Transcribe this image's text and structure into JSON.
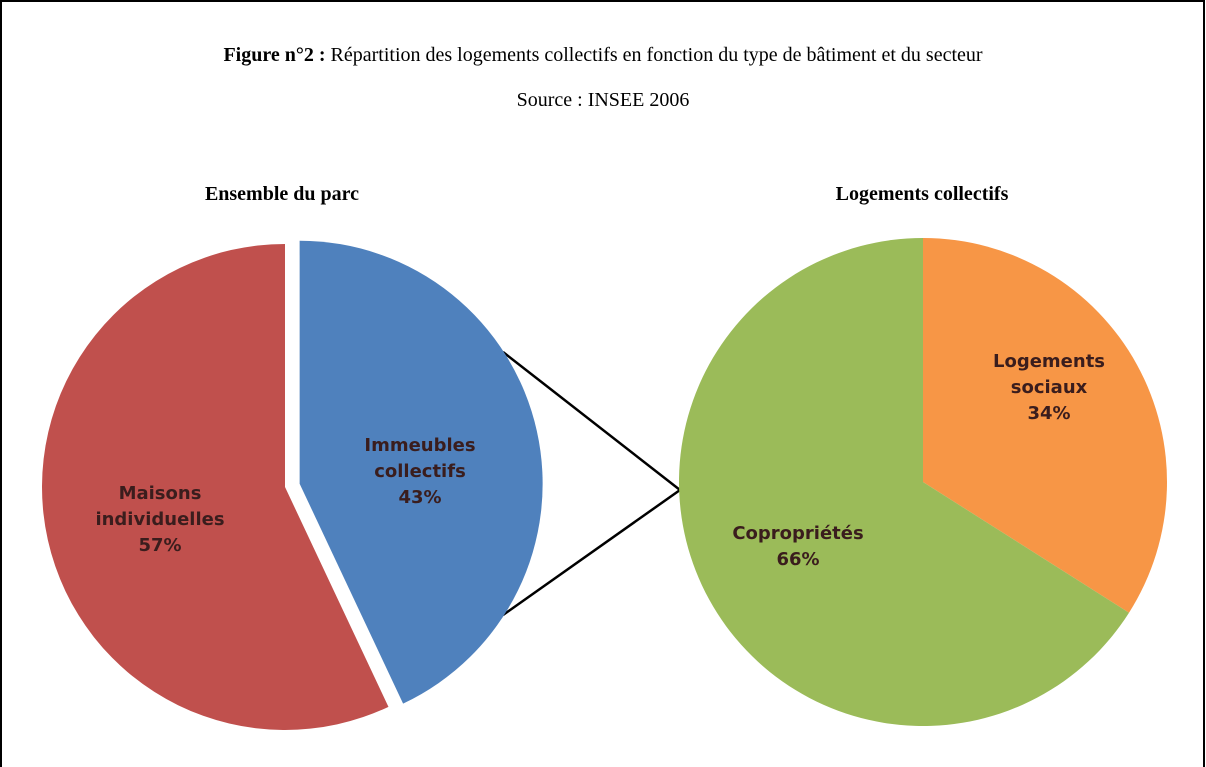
{
  "figure": {
    "label": "Figure n°2 :",
    "title": "Répartition des logements collectifs en fonction du type de bâtiment et du secteur",
    "source": "Source : INSEE 2006"
  },
  "chart_data": [
    {
      "type": "pie",
      "title": "Ensemble du parc",
      "categories": [
        "Immeubles collectifs",
        "Maisons individuelles"
      ],
      "values": [
        43,
        57
      ],
      "value_labels": [
        "43%",
        "57%"
      ],
      "colors": [
        "#4f81bd",
        "#c0504d"
      ]
    },
    {
      "type": "pie",
      "title": "Logements collectifs",
      "categories": [
        "Logements sociaux",
        "Copropriétés"
      ],
      "values": [
        34,
        66
      ],
      "value_labels": [
        "34%",
        "66%"
      ],
      "colors": [
        "#f79646",
        "#9bbb59"
      ]
    }
  ]
}
